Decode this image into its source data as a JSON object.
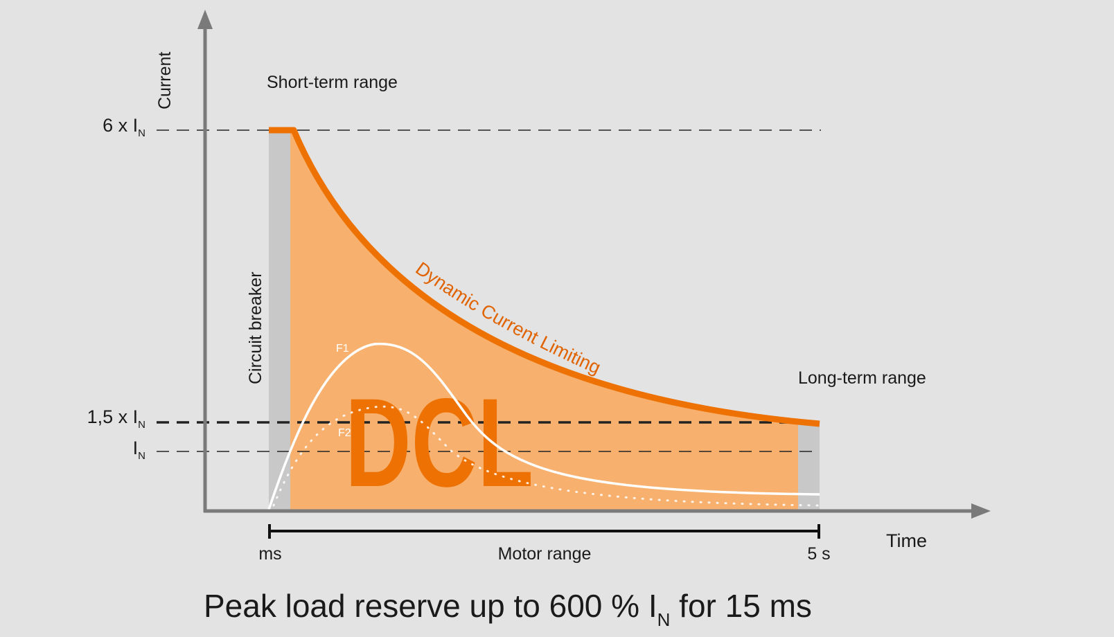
{
  "axes": {
    "y_label": "Current",
    "x_label": "Time",
    "levels": [
      {
        "base": "6 x I",
        "sub": "N"
      },
      {
        "base": "1,5 x I",
        "sub": "N"
      },
      {
        "base": "I",
        "sub": "N"
      }
    ]
  },
  "regions": {
    "short_term": "Short-term range",
    "long_term": "Long-term range",
    "circuit_breaker": "Circuit breaker",
    "motor_range": "Motor range",
    "motor_start": "ms",
    "motor_end": "5 s"
  },
  "curves": {
    "dcl_label": "Dynamic Current Limiting",
    "dcl_logo": "DCL",
    "f1": "F1",
    "f2": "F2"
  },
  "caption": {
    "main": "Peak load reserve up to 600 % I",
    "sub": "N",
    "tail": " for 15 ms"
  },
  "colors": {
    "background": "#e3e3e3",
    "fill": "#f7b06d",
    "orange": "#ee7203",
    "grey_band": "#c8c8c8",
    "axis": "#7a7a7a",
    "curve": "#ffffff"
  }
}
